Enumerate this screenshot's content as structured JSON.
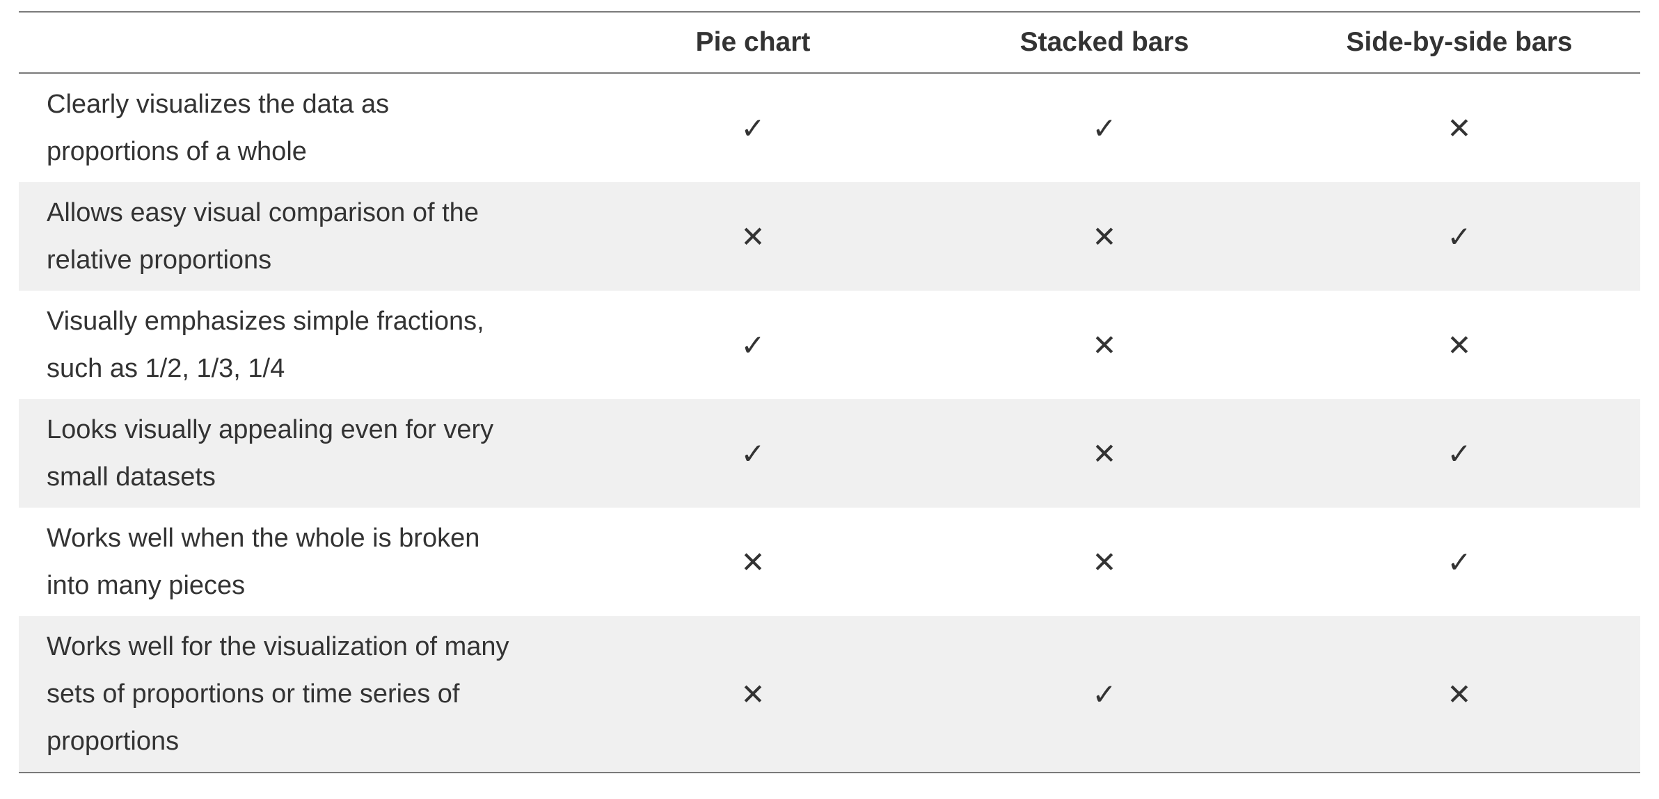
{
  "columns": [
    "",
    "Pie chart",
    "Stacked bars",
    "Side-by-side bars"
  ],
  "symbols": {
    "yes": "✓",
    "no": "✕"
  },
  "rows": [
    {
      "label": "Clearly visualizes the data as\nproportions of a whole",
      "marks": [
        "✓",
        "✓",
        "✕"
      ]
    },
    {
      "label": "Allows easy visual comparison of the\nrelative proportions",
      "marks": [
        "✕",
        "✕",
        "✓"
      ]
    },
    {
      "label": "Visually emphasizes simple fractions,\nsuch as 1/2, 1/3, 1/4",
      "marks": [
        "✓",
        "✕",
        "✕"
      ]
    },
    {
      "label": "Looks visually appealing even for very\nsmall datasets",
      "marks": [
        "✓",
        "✕",
        "✓"
      ]
    },
    {
      "label": "Works well when the whole is broken\ninto many pieces",
      "marks": [
        "✕",
        "✕",
        "✓"
      ]
    },
    {
      "label": "Works well for the visualization of many\nsets of proportions or time series of\nproportions",
      "marks": [
        "✕",
        "✓",
        "✕"
      ]
    }
  ]
}
